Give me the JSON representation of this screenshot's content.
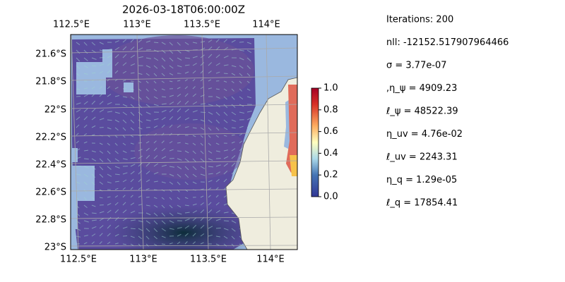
{
  "title": "2026-03-18T06:00:00Z",
  "map": {
    "top_lon_labels": [
      "112.5°E",
      "113°E",
      "113.5°E",
      "114°E"
    ],
    "bottom_lon_labels": [
      "112.5°E",
      "113°E",
      "113.5°E",
      "114°E"
    ],
    "lat_labels": [
      "21.6°S",
      "21.8°S",
      "22°S",
      "22.2°S",
      "22.4°S",
      "22.6°S",
      "22.8°S",
      "23°S"
    ]
  },
  "colorbar": {
    "lim": [
      0,
      1
    ],
    "ticks": [
      {
        "value": 0,
        "label": "0.0"
      },
      {
        "value": 0.2,
        "label": "0.2"
      },
      {
        "value": 0.4,
        "label": "0.4"
      },
      {
        "value": 0.6,
        "label": "0.6"
      },
      {
        "value": 0.8,
        "label": "0.8"
      },
      {
        "value": 1,
        "label": "1.0"
      }
    ]
  },
  "info": [
    "Iterations: 200",
    "nll: -12152.517907964466",
    "σ = 3.77e-07",
    ",η_ψ = 4909.23",
    "ℓ_ψ = 48522.39",
    "η_uv = 4.76e-02",
    "ℓ_uv = 2243.31",
    "η_q = 1.29e-05",
    "ℓ_q = 17854.41"
  ]
}
